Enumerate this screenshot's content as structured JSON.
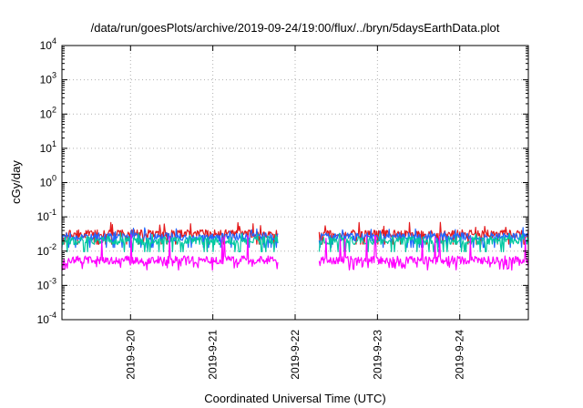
{
  "chart_data": {
    "type": "line",
    "title": "/data/run/goesPlots/archive/2019-09-24/19:00/flux/../bryn/5daysEarthData.plot",
    "xlabel": "Coordinated Universal Time (UTC)",
    "ylabel": "cGy/day",
    "yscale": "log",
    "ylim": [
      0.0001,
      10000
    ],
    "xlim": [
      "2019-09-19 04:00",
      "2019-09-24 20:00"
    ],
    "x_ticks": [
      "2019-9-20",
      "2019-9-21",
      "2019-9-22",
      "2019-9-23",
      "2019-9-24"
    ],
    "y_ticks": [
      {
        "base": "10",
        "exp": "-4",
        "value": 0.0001
      },
      {
        "base": "10",
        "exp": "-3",
        "value": 0.001
      },
      {
        "base": "10",
        "exp": "-2",
        "value": 0.01
      },
      {
        "base": "10",
        "exp": "-1",
        "value": 0.1
      },
      {
        "base": "10",
        "exp": "0",
        "value": 1
      },
      {
        "base": "10",
        "exp": "1",
        "value": 10
      },
      {
        "base": "10",
        "exp": "2",
        "value": 100
      },
      {
        "base": "10",
        "exp": "3",
        "value": 1000
      },
      {
        "base": "10",
        "exp": "4",
        "value": 10000
      }
    ],
    "grid": true,
    "gaps": [
      {
        "start": "2019-09-21 19:00",
        "end": "2019-09-22 07:00"
      }
    ],
    "series": [
      {
        "color": "#e41a1c",
        "level": 0.032,
        "low": 0.02,
        "high": 0.07,
        "spike_low": 0.012
      },
      {
        "color": "#2166ff",
        "level": 0.026,
        "low": 0.016,
        "high": 0.05,
        "spike_low": 0.009
      },
      {
        "color": "#00c8a0",
        "level": 0.02,
        "low": 0.012,
        "high": 0.035,
        "spike_low": 0.007
      },
      {
        "color": "#ff00ff",
        "level": 0.0055,
        "low": 0.0035,
        "high": 0.03,
        "spike_low": 0.0032
      }
    ]
  }
}
